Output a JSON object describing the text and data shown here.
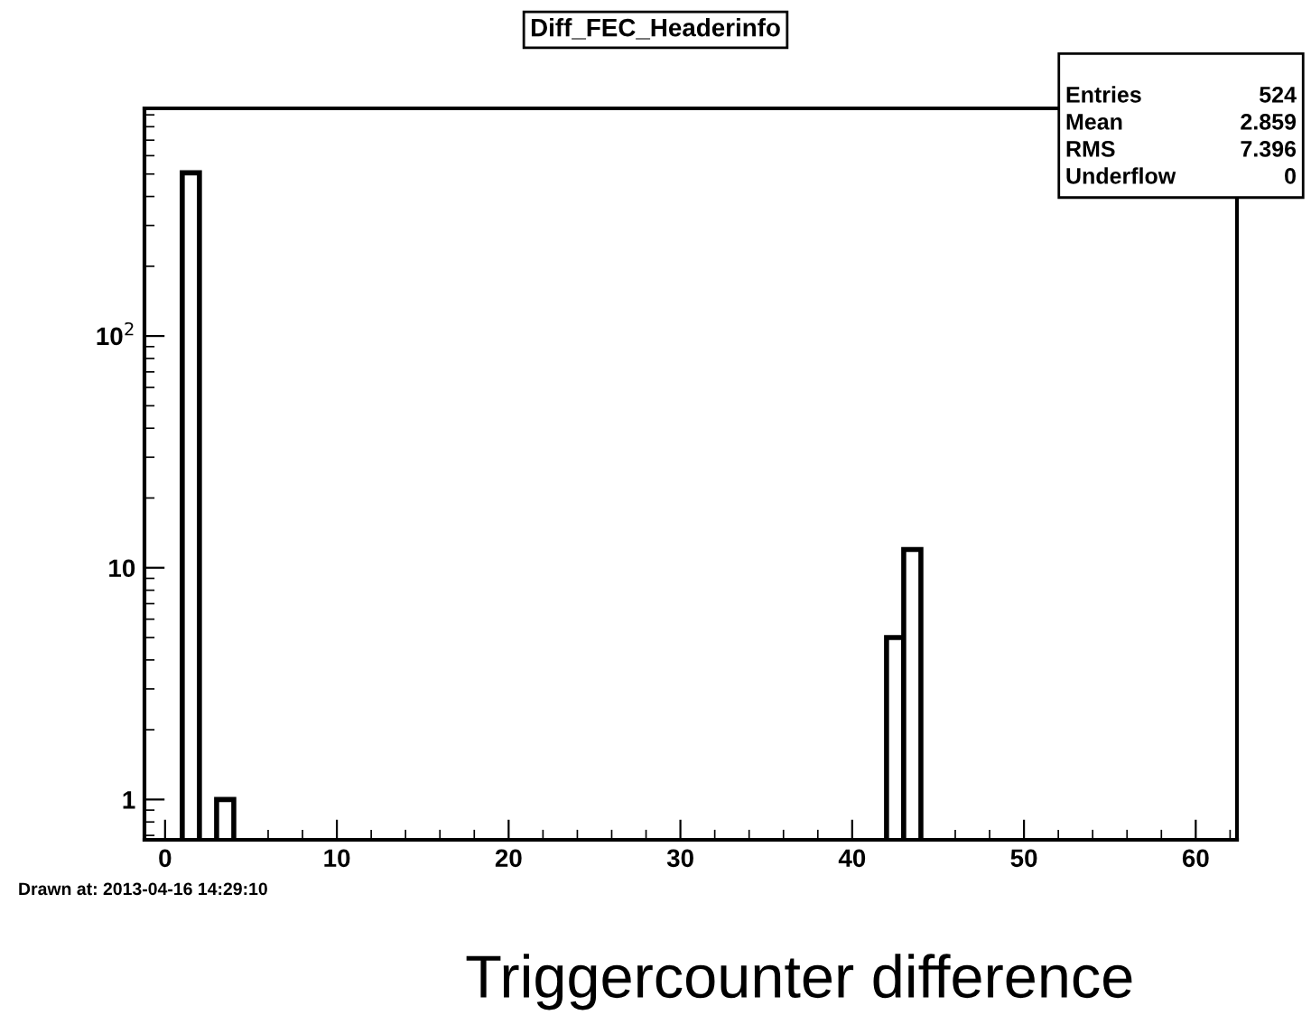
{
  "chart_data": {
    "type": "histogram",
    "title": "Diff_FEC_Headerinfo",
    "xlabel": "Triggercounter difference",
    "bins": [
      1,
      2,
      3,
      4,
      42,
      43,
      44
    ],
    "values": [
      506,
      null,
      1,
      null,
      5,
      12
    ],
    "color": "#000000",
    "log": "y",
    "xlim": [
      -1.2,
      62.4
    ],
    "xticks": [
      0,
      10,
      20,
      30,
      40,
      50,
      60
    ],
    "ylim": [
      0.67,
      960
    ],
    "yticks": [
      1,
      10,
      {
        "value": 100,
        "label": "10$^{2}$"
      }
    ],
    "grid": false,
    "annotations": [
      "Entries",
      "524",
      "Mean",
      "2.859",
      "RMS",
      "7.396",
      "Underflow",
      "0",
      "Drawn at: 2013-04-16 14:29:10"
    ]
  }
}
